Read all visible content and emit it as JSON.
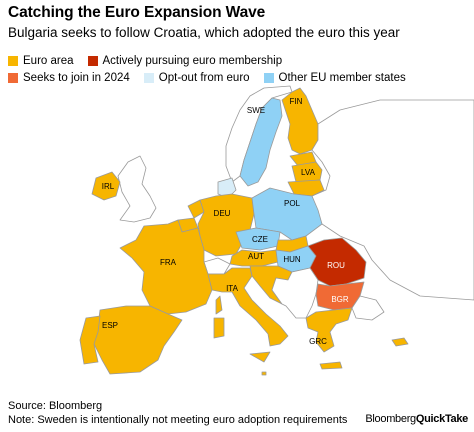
{
  "title": "Catching the Euro Expansion Wave",
  "subtitle": "Bulgaria seeks to follow Croatia, which adopted the euro this year",
  "legend": [
    {
      "label": "Euro area",
      "color": "#f7b500"
    },
    {
      "label": "Actively pursuing euro membership",
      "color": "#c42a00"
    },
    {
      "label": "Seeks to join in 2024",
      "color": "#f06a35"
    },
    {
      "label": "Opt-out from euro",
      "color": "#d8edf8"
    },
    {
      "label": "Other EU member states",
      "color": "#8fd1f5"
    }
  ],
  "colors": {
    "non_eu": "#ffffff",
    "border": "#9a9a9a",
    "sea": "#ffffff"
  },
  "countries": [
    {
      "code": "FIN",
      "status": "Euro area"
    },
    {
      "code": "SWE",
      "status": "Other EU member states"
    },
    {
      "code": "LVA",
      "status": "Euro area"
    },
    {
      "code": "IRL",
      "status": "Euro area"
    },
    {
      "code": "DEU",
      "status": "Euro area"
    },
    {
      "code": "POL",
      "status": "Other EU member states"
    },
    {
      "code": "CZE",
      "status": "Other EU member states"
    },
    {
      "code": "FRA",
      "status": "Euro area"
    },
    {
      "code": "AUT",
      "status": "Euro area"
    },
    {
      "code": "HUN",
      "status": "Other EU member states"
    },
    {
      "code": "ROU",
      "status": "Actively pursuing euro membership"
    },
    {
      "code": "ITA",
      "status": "Euro area"
    },
    {
      "code": "BGR",
      "status": "Seeks to join in 2024"
    },
    {
      "code": "ESP",
      "status": "Euro area"
    },
    {
      "code": "GRC",
      "status": "Euro area"
    }
  ],
  "footer": {
    "source": "Source: Bloomberg",
    "note": "Note: Sweden is intentionally not meeting euro adoption requirements"
  },
  "brand": {
    "part1": "Bloomberg",
    "part2": "QuickTake"
  }
}
